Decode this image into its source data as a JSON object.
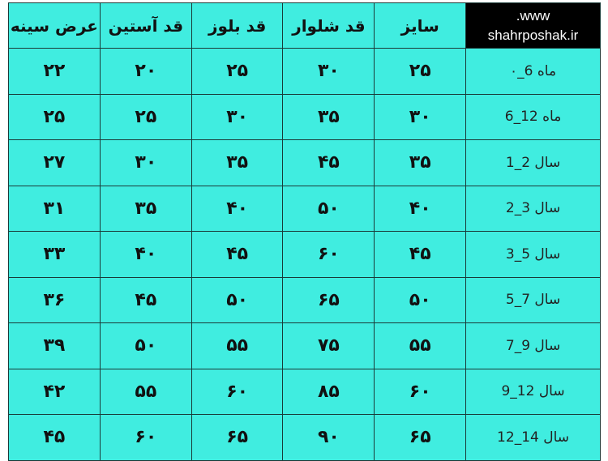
{
  "brand": {
    "line1": "www.",
    "line2": "shahrposhak.ir"
  },
  "columns": [
    "سایز",
    "قد شلوار",
    "قد بلوز",
    "قد آستین",
    "عرض سینه"
  ],
  "rows": [
    {
      "age": "ماه 6_۰",
      "values": [
        "۲۵",
        "۳۰",
        "۲۵",
        "۲۰",
        "۲۲"
      ]
    },
    {
      "age": "ماه 12_6",
      "values": [
        "۳۰",
        "۳۵",
        "۳۰",
        "۲۵",
        "۲۵"
      ]
    },
    {
      "age": "سال 2_1",
      "values": [
        "۳۵",
        "۴۵",
        "۳۵",
        "۳۰",
        "۲۷"
      ]
    },
    {
      "age": "سال 3_2",
      "values": [
        "۴۰",
        "۵۰",
        "۴۰",
        "۳۵",
        "۳۱"
      ]
    },
    {
      "age": "سال 5_3",
      "values": [
        "۴۵",
        "۶۰",
        "۴۵",
        "۴۰",
        "۳۳"
      ]
    },
    {
      "age": "سال 7_5",
      "values": [
        "۵۰",
        "۶۵",
        "۵۰",
        "۴۵",
        "۳۶"
      ]
    },
    {
      "age": "سال 9_7",
      "values": [
        "۵۵",
        "۷۵",
        "۵۵",
        "۵۰",
        "۳۹"
      ]
    },
    {
      "age": "سال 12_9",
      "values": [
        "۶۰",
        "۸۵",
        "۶۰",
        "۵۵",
        "۴۲"
      ]
    },
    {
      "age": "سال 14_12",
      "values": [
        "۶۵",
        "۹۰",
        "۶۵",
        "۶۰",
        "۴۵"
      ]
    }
  ],
  "colors": {
    "cell_bg": "#40EDE0",
    "brand_bg": "#000000",
    "brand_text": "#FFFFFF"
  }
}
